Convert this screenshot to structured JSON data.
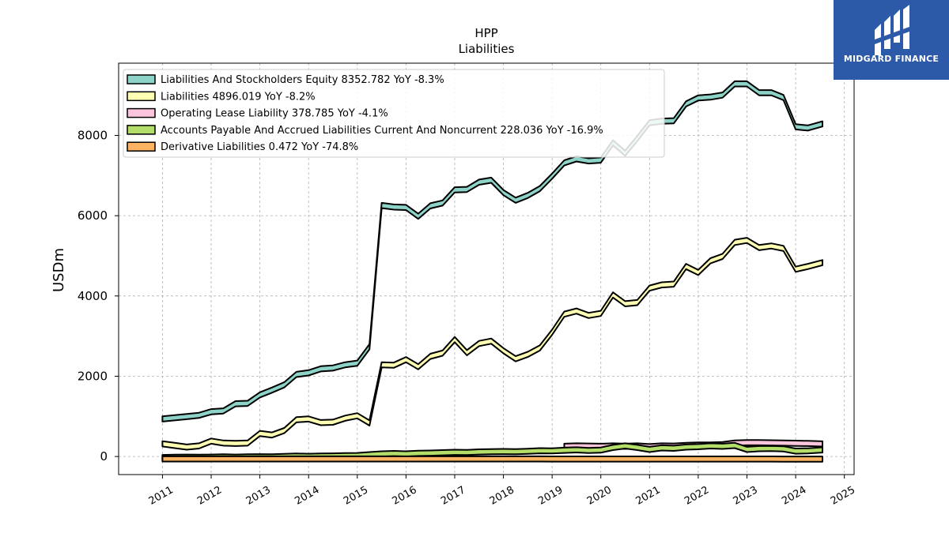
{
  "brand": {
    "name": "MIDGARD FINANCE",
    "bg_color": "#2d5aa8"
  },
  "chart_data": {
    "type": "area",
    "title": "HPP",
    "subtitle": "Liabilities",
    "ylabel": "USDm",
    "xlabel": "",
    "ylim": [
      -450,
      9800
    ],
    "xlim": [
      2010.1,
      2025.2
    ],
    "y_ticks": [
      0,
      2000,
      4000,
      6000,
      8000
    ],
    "x_ticks": [
      2011,
      2012,
      2013,
      2014,
      2015,
      2016,
      2017,
      2018,
      2019,
      2020,
      2021,
      2022,
      2023,
      2024,
      2025
    ],
    "grid": true,
    "legend_position": "top-left",
    "series": [
      {
        "name": "Liabilities And Stockholders Equity",
        "label": "Liabilities And Stockholders Equity  8352.782 YoY -8.3%",
        "color": "#8dd3c7",
        "x": [
          2011.0,
          2011.25,
          2011.5,
          2011.75,
          2012.0,
          2012.25,
          2012.5,
          2012.75,
          2013.0,
          2013.25,
          2013.5,
          2013.75,
          2014.0,
          2014.25,
          2014.5,
          2014.75,
          2015.0,
          2015.25,
          2015.5,
          2015.75,
          2016.0,
          2016.25,
          2016.5,
          2016.75,
          2017.0,
          2017.25,
          2017.5,
          2017.75,
          2018.0,
          2018.25,
          2018.5,
          2018.75,
          2019.0,
          2019.25,
          2019.5,
          2019.75,
          2020.0,
          2020.25,
          2020.5,
          2020.75,
          2021.0,
          2021.25,
          2021.5,
          2021.75,
          2022.0,
          2022.25,
          2022.5,
          2022.75,
          2023.0,
          2023.25,
          2023.5,
          2023.75,
          2024.0,
          2024.25,
          2024.55
        ],
        "values": [
          1000,
          1030,
          1060,
          1090,
          1180,
          1200,
          1380,
          1390,
          1600,
          1720,
          1850,
          2110,
          2150,
          2250,
          2270,
          2350,
          2390,
          2800,
          6320,
          6280,
          6270,
          6050,
          6310,
          6380,
          6710,
          6720,
          6900,
          6950,
          6640,
          6450,
          6570,
          6740,
          7050,
          7380,
          7480,
          7430,
          7450,
          7880,
          7620,
          7990,
          8380,
          8420,
          8430,
          8850,
          9000,
          9020,
          9070,
          9350,
          9350,
          9130,
          9130,
          9010,
          8280,
          8250,
          8352.782
        ]
      },
      {
        "name": "Liabilities",
        "label": "Liabilities  4896.019 YoY -8.2%",
        "color": "#ffffb3",
        "x": [
          2011.0,
          2011.25,
          2011.5,
          2011.75,
          2012.0,
          2012.25,
          2012.5,
          2012.75,
          2013.0,
          2013.25,
          2013.5,
          2013.75,
          2014.0,
          2014.25,
          2014.5,
          2014.75,
          2015.0,
          2015.25,
          2015.5,
          2015.75,
          2016.0,
          2016.25,
          2016.5,
          2016.75,
          2017.0,
          2017.25,
          2017.5,
          2017.75,
          2018.0,
          2018.25,
          2018.5,
          2018.75,
          2019.0,
          2019.25,
          2019.5,
          2019.75,
          2020.0,
          2020.25,
          2020.5,
          2020.75,
          2021.0,
          2021.25,
          2021.5,
          2021.75,
          2022.0,
          2022.25,
          2022.5,
          2022.75,
          2023.0,
          2023.25,
          2023.5,
          2023.75,
          2024.0,
          2024.25,
          2024.55
        ],
        "values": [
          380,
          340,
          300,
          330,
          450,
          400,
          390,
          400,
          640,
          600,
          710,
          980,
          1000,
          910,
          920,
          1020,
          1080,
          900,
          2350,
          2340,
          2480,
          2300,
          2560,
          2640,
          2980,
          2650,
          2880,
          2940,
          2700,
          2500,
          2610,
          2770,
          3160,
          3610,
          3690,
          3580,
          3630,
          4090,
          3870,
          3900,
          4260,
          4340,
          4360,
          4800,
          4650,
          4940,
          5050,
          5400,
          5450,
          5270,
          5310,
          5250,
          4730,
          4800,
          4896.019
        ]
      },
      {
        "name": "Operating Lease Liability",
        "label": "Operating Lease Liability  378.785 YoY -4.1%",
        "color": "#fbc6dd",
        "x": [
          2019.25,
          2019.5,
          2019.75,
          2020.0,
          2020.25,
          2020.5,
          2020.75,
          2021.0,
          2021.25,
          2021.5,
          2021.75,
          2022.0,
          2022.25,
          2022.5,
          2022.75,
          2023.0,
          2023.25,
          2023.5,
          2023.75,
          2024.0,
          2024.25,
          2024.55
        ],
        "values": [
          320,
          330,
          325,
          320,
          330,
          320,
          330,
          310,
          330,
          325,
          340,
          350,
          350,
          360,
          400,
          410,
          410,
          405,
          400,
          395,
          390,
          378.785
        ]
      },
      {
        "name": "Accounts Payable And Accrued Liabilities Current And Noncurrent",
        "label": "Accounts Payable And Accrued Liabilities Current And Noncurrent  228.036 YoY -16.9%",
        "color": "#b3de69",
        "x": [
          2011.0,
          2011.25,
          2011.5,
          2011.75,
          2012.0,
          2012.25,
          2012.5,
          2012.75,
          2013.0,
          2013.25,
          2013.5,
          2013.75,
          2014.0,
          2014.25,
          2014.5,
          2014.75,
          2015.0,
          2015.25,
          2015.5,
          2015.75,
          2016.0,
          2016.25,
          2016.5,
          2016.75,
          2017.0,
          2017.25,
          2017.5,
          2017.75,
          2018.0,
          2018.25,
          2018.5,
          2018.75,
          2019.0,
          2019.25,
          2019.5,
          2019.75,
          2020.0,
          2020.25,
          2020.5,
          2020.75,
          2021.0,
          2021.25,
          2021.5,
          2021.75,
          2022.0,
          2022.25,
          2022.5,
          2022.75,
          2023.0,
          2023.25,
          2023.5,
          2023.75,
          2024.0,
          2024.25,
          2024.55
        ],
        "values": [
          40,
          45,
          50,
          45,
          50,
          55,
          50,
          55,
          60,
          55,
          65,
          75,
          70,
          75,
          80,
          85,
          90,
          110,
          130,
          140,
          130,
          145,
          150,
          160,
          170,
          165,
          180,
          185,
          190,
          185,
          195,
          210,
          205,
          220,
          230,
          215,
          225,
          290,
          330,
          290,
          240,
          280,
          270,
          300,
          310,
          330,
          320,
          340,
          240,
          260,
          265,
          255,
          200,
          205,
          228.036
        ]
      },
      {
        "name": "Derivative Liabilities",
        "label": "Derivative Liabilities  0.472 YoY -74.8%",
        "color": "#fdb462",
        "x": [
          2011.0,
          2011.25,
          2011.5,
          2011.75,
          2012.0,
          2012.25,
          2012.5,
          2012.75,
          2013.0,
          2013.25,
          2013.5,
          2013.75,
          2014.0,
          2014.25,
          2014.5,
          2014.75,
          2015.0,
          2015.25,
          2015.5,
          2015.75,
          2016.0,
          2016.25,
          2016.5,
          2016.75,
          2017.0,
          2017.25,
          2017.5,
          2017.75,
          2018.0,
          2018.25,
          2018.5,
          2018.75,
          2019.0,
          2019.25,
          2019.5,
          2019.75,
          2020.0,
          2020.25,
          2020.5,
          2020.75,
          2021.0,
          2021.25,
          2021.5,
          2021.75,
          2022.0,
          2022.25,
          2022.5,
          2022.75,
          2023.0,
          2023.25,
          2023.5,
          2023.75,
          2024.0,
          2024.25,
          2024.55
        ],
        "values": [
          5,
          5,
          5,
          5,
          5,
          5,
          5,
          5,
          5,
          5,
          5,
          5,
          5,
          5,
          5,
          5,
          5,
          5,
          5,
          5,
          5,
          5,
          5,
          5,
          5,
          5,
          5,
          5,
          5,
          5,
          5,
          5,
          3,
          3,
          3,
          3,
          3,
          3,
          3,
          3,
          3,
          3,
          3,
          3,
          3,
          2,
          2,
          2,
          2,
          2,
          2,
          1,
          1,
          1,
          0.472
        ]
      }
    ]
  }
}
